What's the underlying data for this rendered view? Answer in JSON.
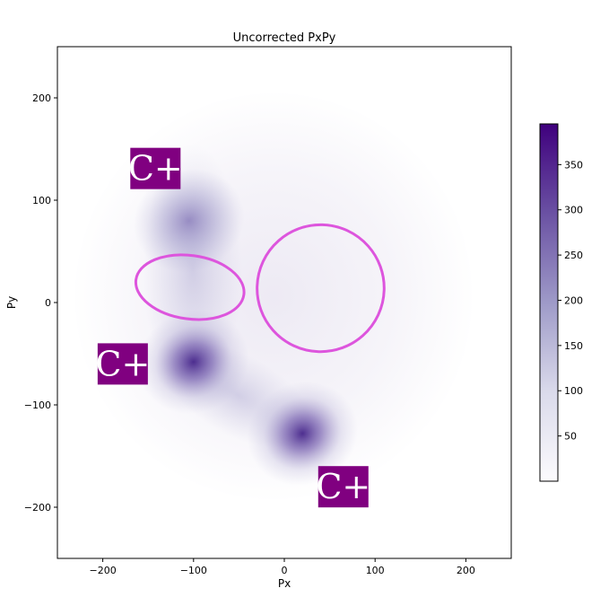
{
  "chart_data": {
    "type": "heatmap",
    "title": "Uncorrected PxPy",
    "xlabel": "Px",
    "ylabel": "Py",
    "xlim": [
      -250,
      250
    ],
    "ylim": [
      -250,
      250
    ],
    "xticks": [
      -200,
      -100,
      0,
      100,
      200
    ],
    "yticks": [
      200,
      100,
      0,
      -100,
      -200
    ],
    "grid": false,
    "colormap": "Purples",
    "colorbar": {
      "range": [
        0,
        395
      ],
      "ticks": [
        50,
        100,
        150,
        200,
        250,
        300,
        350
      ]
    },
    "clusters": [
      {
        "px": -100,
        "py": -58,
        "peak": 395
      },
      {
        "px": 20,
        "py": -128,
        "peak": 380
      },
      {
        "px": -105,
        "py": 80,
        "peak": 260
      }
    ],
    "annotations": [
      {
        "text": "C+",
        "px": -142,
        "py": 131
      },
      {
        "text": "C+",
        "px": -178,
        "py": -60
      },
      {
        "text": "C+",
        "px": 65,
        "py": -180
      }
    ],
    "ellipses": [
      {
        "cx": -104,
        "cy": 15,
        "rx": 60,
        "ry": 31,
        "rotation": 8,
        "color": "#dd55dd"
      },
      {
        "cx": 40,
        "cy": 14,
        "rx": 70,
        "ry": 62,
        "rotation": -20,
        "color": "#dd55dd"
      }
    ]
  }
}
